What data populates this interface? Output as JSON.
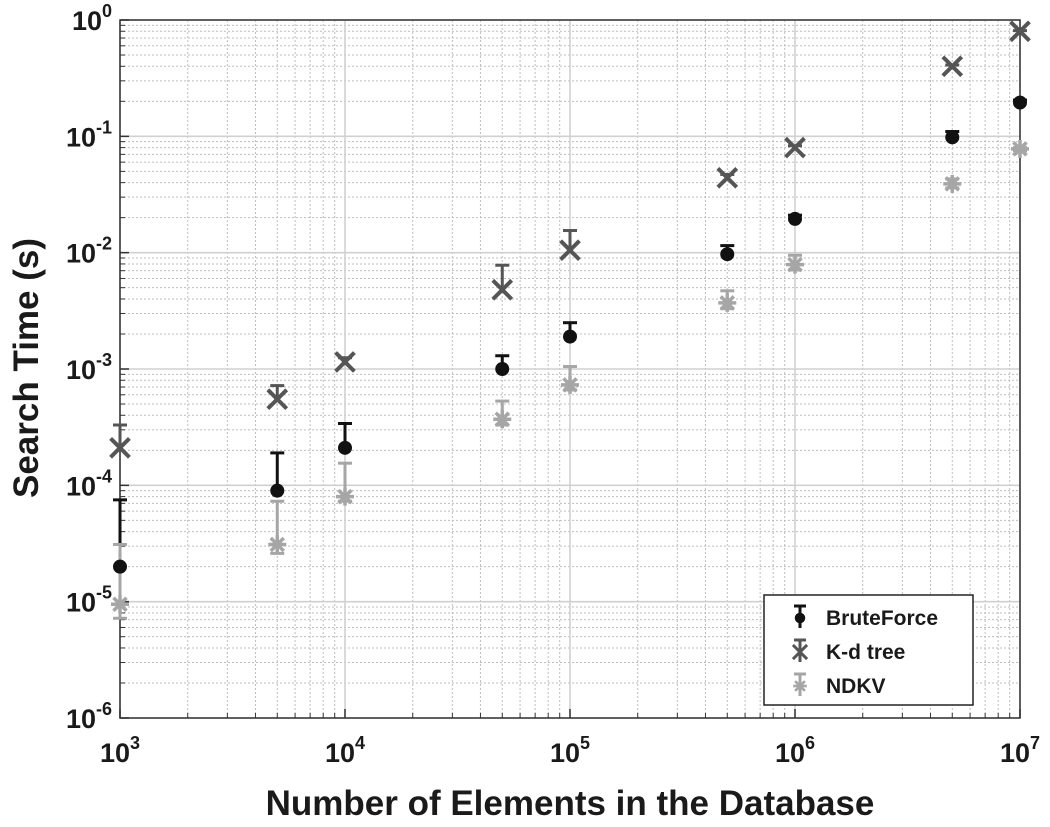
{
  "chart_data": {
    "type": "scatter",
    "x_scale": "log",
    "y_scale": "log",
    "xlim": [
      1000,
      10000000
    ],
    "ylim": [
      1e-06,
      1
    ],
    "grid": true,
    "minor_grid": true,
    "legend_position": "bottom-right",
    "xlabel": "Number of Elements in the Database",
    "ylabel": "Search Time (s)",
    "x_ticks": [
      {
        "value": 1000,
        "base": "10",
        "exp": "3"
      },
      {
        "value": 10000,
        "base": "10",
        "exp": "4"
      },
      {
        "value": 100000,
        "base": "10",
        "exp": "5"
      },
      {
        "value": 1000000,
        "base": "10",
        "exp": "6"
      },
      {
        "value": 10000000,
        "base": "10",
        "exp": "7"
      }
    ],
    "y_ticks": [
      {
        "value": 1e-06,
        "base": "10",
        "exp": "-6"
      },
      {
        "value": 1e-05,
        "base": "10",
        "exp": "-5"
      },
      {
        "value": 0.0001,
        "base": "10",
        "exp": "-4"
      },
      {
        "value": 0.001,
        "base": "10",
        "exp": "-3"
      },
      {
        "value": 0.01,
        "base": "10",
        "exp": "-2"
      },
      {
        "value": 0.1,
        "base": "10",
        "exp": "-1"
      },
      {
        "value": 1,
        "base": "10",
        "exp": "0"
      }
    ],
    "x": [
      1000,
      5000,
      10000,
      50000,
      100000,
      500000,
      1000000,
      5000000,
      10000000
    ],
    "series": [
      {
        "name": "BruteForce",
        "marker": "circle",
        "color": "#111111",
        "values": [
          2e-05,
          9e-05,
          0.00021,
          0.001,
          0.0019,
          0.0097,
          0.0195,
          0.098,
          0.195
        ],
        "error_upper": [
          7.5e-05,
          0.00019,
          0.00034,
          0.0013,
          0.0025,
          0.0115,
          0.021,
          0.11,
          0.205
        ]
      },
      {
        "name": "K-d tree",
        "marker": "x",
        "color": "#555555",
        "values": [
          0.00021,
          0.00055,
          0.00115,
          0.0048,
          0.0105,
          0.044,
          0.08,
          0.4,
          0.8
        ],
        "error_upper": [
          0.00033,
          0.00072,
          0.00125,
          0.0078,
          0.0155,
          0.047,
          0.083,
          0.41,
          0.81
        ]
      },
      {
        "name": "NDKV",
        "marker": "asterisk",
        "color": "#a6a6a6",
        "values": [
          9.5e-06,
          3.1e-05,
          8e-05,
          0.00037,
          0.00073,
          0.0037,
          0.0079,
          0.039,
          0.078
        ],
        "error_upper": [
          3.1e-05,
          7.3e-05,
          0.000155,
          0.00053,
          0.00105,
          0.0047,
          0.0095,
          0.043,
          0.08
        ],
        "error_lower": [
          7.2e-06,
          2.6e-05,
          7.3e-05,
          0.00033,
          0.00066,
          0.0033,
          0.0071,
          0.036,
          0.075
        ]
      }
    ]
  }
}
